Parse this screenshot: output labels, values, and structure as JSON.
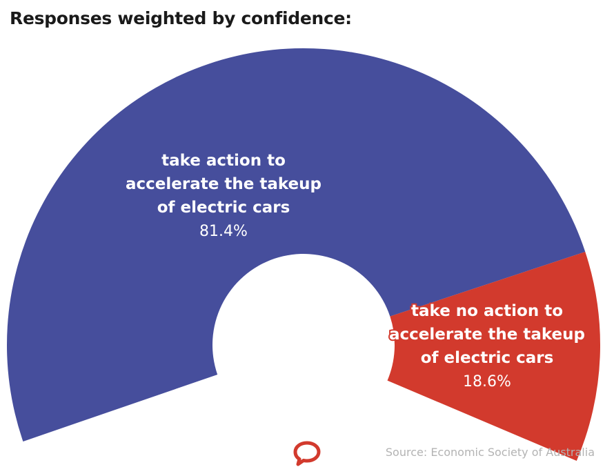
{
  "title": "Responses weighted by confidence:",
  "source": "Source: Economic Society of Australia",
  "logo_icon": "speech-bubble-icon",
  "colors": {
    "accent_blue": "#464e9c",
    "accent_red": "#d23a2d",
    "source_text": "#b3b3b3"
  },
  "chart_data": {
    "type": "pie",
    "variant": "semi-donut",
    "title": "Responses weighted by confidence:",
    "slices": [
      {
        "label_lines": [
          "take action to",
          "accelerate the takeup",
          "of electric cars"
        ],
        "value_label": "81.4%",
        "value": 81.4,
        "color": "#464e9c"
      },
      {
        "label_lines": [
          "take no action to",
          "accelerate the takeup",
          "of electric cars"
        ],
        "value_label": "18.6%",
        "value": 18.6,
        "color": "#d23a2d"
      }
    ]
  }
}
